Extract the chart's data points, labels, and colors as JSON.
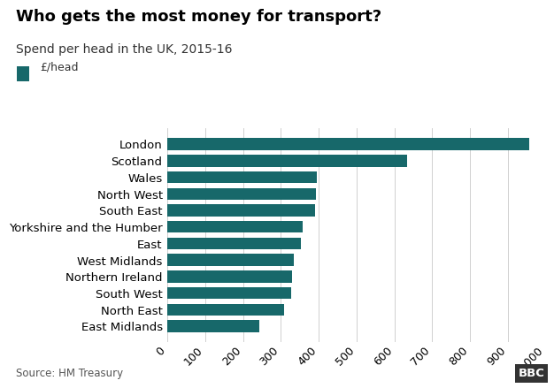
{
  "title": "Who gets the most money for transport?",
  "subtitle": "Spend per head in the UK, 2015-16",
  "legend_label": "£/head",
  "source": "Source: HM Treasury",
  "categories": [
    "East Midlands",
    "North East",
    "South West",
    "Northern Ireland",
    "West Midlands",
    "East",
    "Yorkshire and the Humber",
    "South East",
    "North West",
    "Wales",
    "Scotland",
    "London"
  ],
  "values": [
    242,
    308,
    326,
    330,
    333,
    354,
    357,
    390,
    393,
    396,
    634,
    957
  ],
  "bar_color": "#17686a",
  "background_color": "#ffffff",
  "xlim": [
    0,
    1000
  ],
  "xticks": [
    0,
    100,
    200,
    300,
    400,
    500,
    600,
    700,
    800,
    900,
    1000
  ],
  "xtick_labels": [
    "0",
    "100",
    "200",
    "300",
    "400",
    "500",
    "600",
    "700",
    "800",
    "900",
    "1,000"
  ],
  "title_fontsize": 13,
  "subtitle_fontsize": 10,
  "tick_fontsize": 9,
  "label_fontsize": 9.5,
  "footer_fontsize": 8.5
}
